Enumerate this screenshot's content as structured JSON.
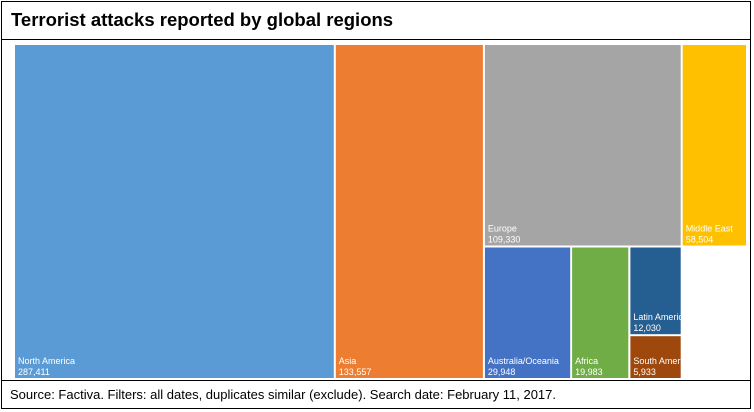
{
  "title": "Terrorist attacks reported by global regions",
  "source": "Source: Factiva. Filters: all dates, duplicates similar (exclude). Search date: February 11, 2017.",
  "chart_data": {
    "type": "treemap",
    "title": "Terrorist attacks reported by global regions",
    "series": [
      {
        "name": "North America",
        "value": 287411,
        "value_label": "287,411",
        "color": "#5b9bd5"
      },
      {
        "name": "Asia",
        "value": 133557,
        "value_label": "133,557",
        "color": "#ed7d31"
      },
      {
        "name": "Europe",
        "value": 109330,
        "value_label": "109,330",
        "color": "#a5a5a5"
      },
      {
        "name": "Middle East",
        "value": 58504,
        "value_label": "58,504",
        "color": "#ffc000"
      },
      {
        "name": "Australia/Oceania",
        "value": 29948,
        "value_label": "29,948",
        "color": "#4472c4"
      },
      {
        "name": "Africa",
        "value": 19983,
        "value_label": "19,983",
        "color": "#70ad47"
      },
      {
        "name": "Latin America",
        "value": 12030,
        "value_label": "12,030",
        "color": "#255e91"
      },
      {
        "name": "South America",
        "value": 5933,
        "value_label": "5,933",
        "color": "#9e480e"
      }
    ]
  }
}
